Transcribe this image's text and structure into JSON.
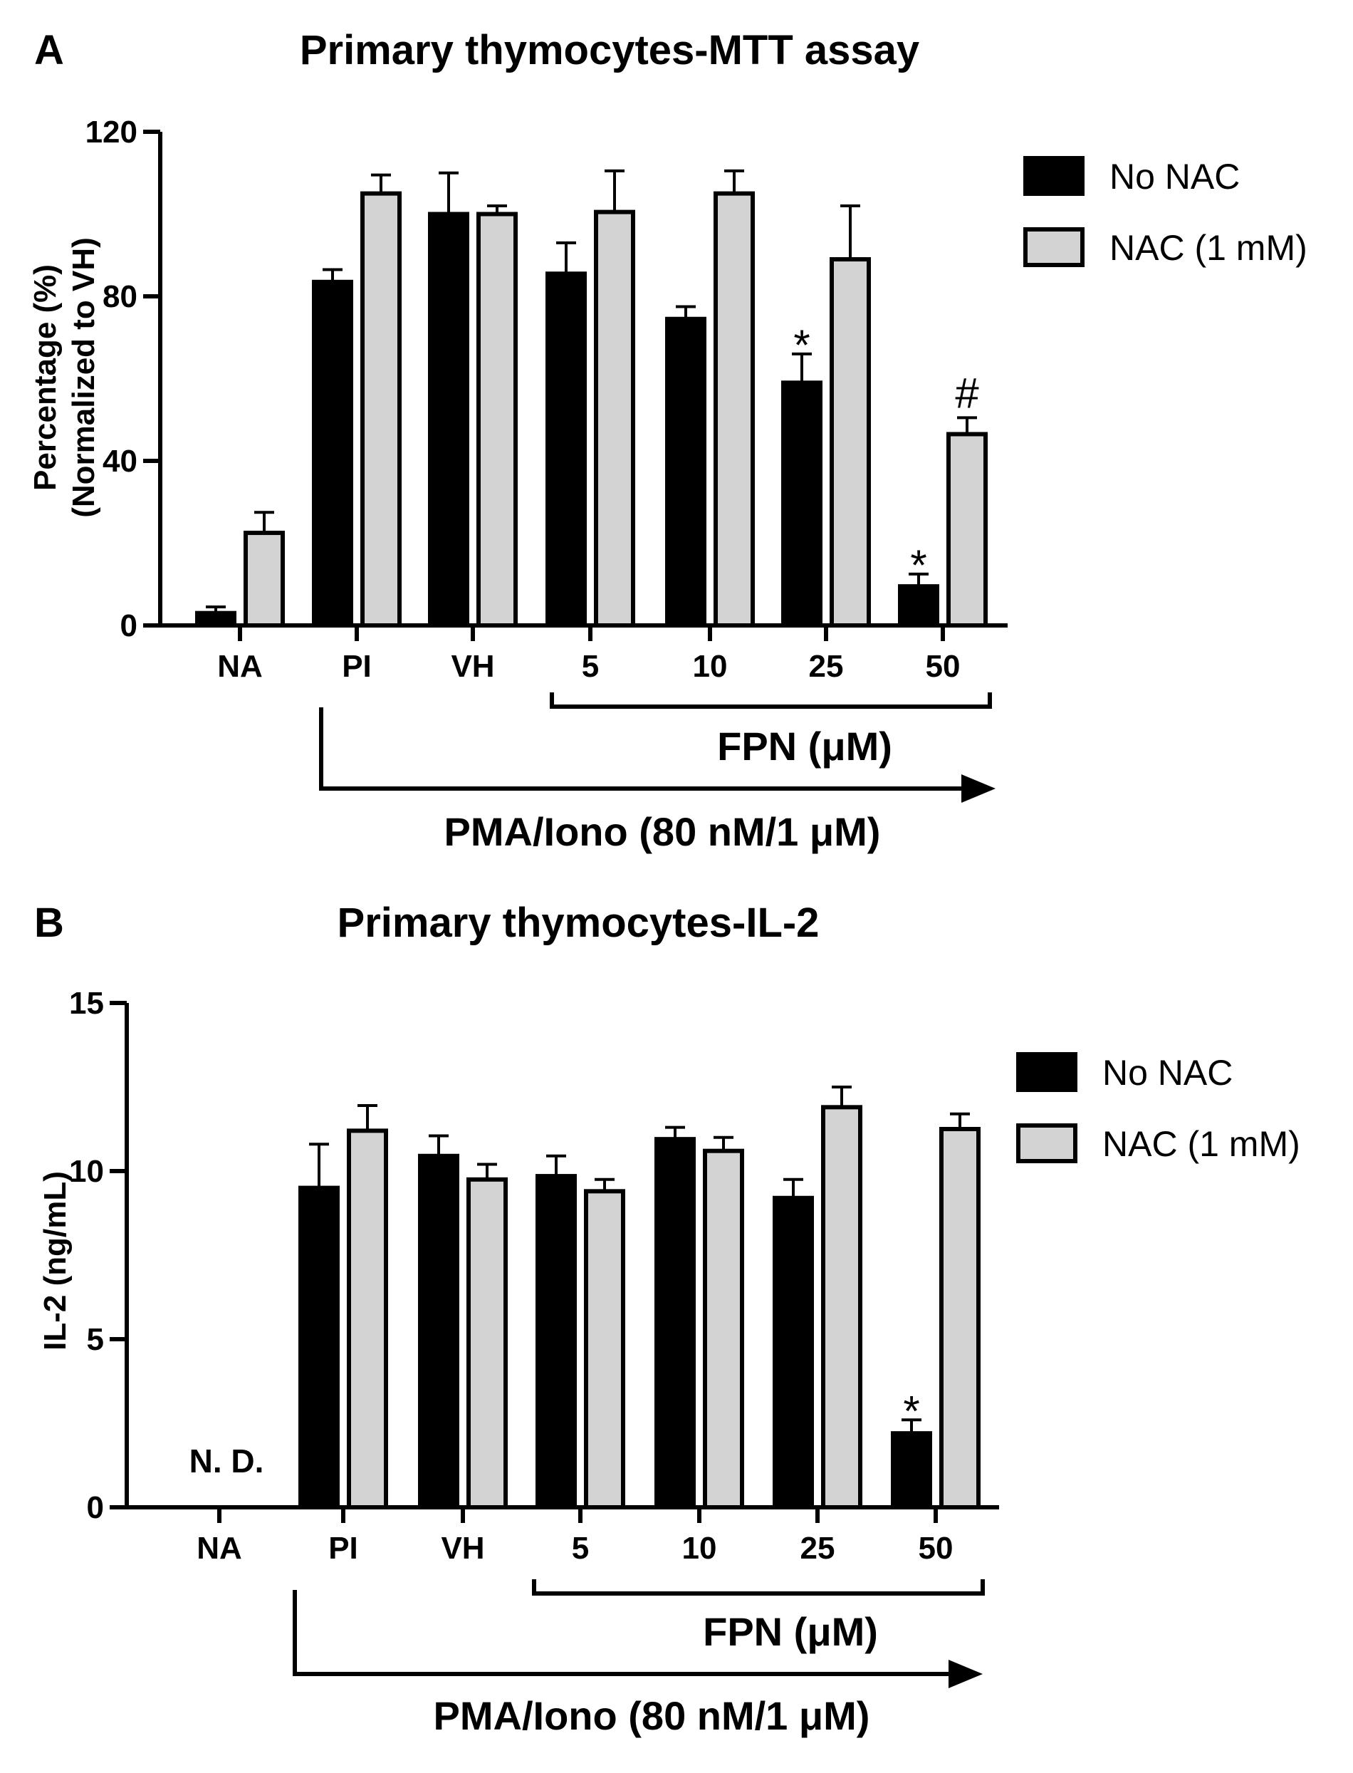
{
  "chart_data": [
    {
      "panel": "A",
      "type": "bar",
      "title": "Primary thymocytes-MTT assay",
      "ylabel": [
        "Percentage (%)",
        "(Normalized to VH)"
      ],
      "ylim": [
        0,
        120
      ],
      "yticks": [
        0,
        40,
        80,
        120
      ],
      "categories": [
        "NA",
        "PI",
        "VH",
        "5",
        "10",
        "25",
        "50"
      ],
      "series": [
        {
          "name": "No NAC",
          "color": "#000000",
          "values": [
            3,
            83.5,
            100,
            85.5,
            74.5,
            59,
            9.5
          ],
          "errors": [
            1.5,
            3,
            10,
            7.5,
            3,
            7,
            3
          ],
          "annotations": [
            "",
            "",
            "",
            "",
            "",
            "*",
            "*"
          ]
        },
        {
          "name": "NAC (1 mM)",
          "color": "#d3d3d3",
          "values": [
            22.5,
            105,
            100,
            100.5,
            105,
            89,
            46.5
          ],
          "errors": [
            5,
            4.5,
            2,
            10,
            5.5,
            13,
            4
          ],
          "annotations": [
            "",
            "",
            "",
            "",
            "",
            "",
            "#"
          ]
        }
      ],
      "brackets": {
        "fpn": "FPN (μM)",
        "pma": "PMA/Iono (80 nM/1 μM)"
      }
    },
    {
      "panel": "B",
      "type": "bar",
      "title": "Primary thymocytes-IL-2",
      "ylabel": [
        "IL-2 (ng/mL)"
      ],
      "ylim": [
        0,
        15
      ],
      "yticks": [
        0,
        5,
        10,
        15
      ],
      "categories": [
        "NA",
        "PI",
        "VH",
        "5",
        "10",
        "25",
        "50"
      ],
      "series": [
        {
          "name": "No NAC",
          "color": "#000000",
          "values": [
            null,
            9.5,
            10.45,
            9.85,
            10.95,
            9.2,
            2.2
          ],
          "errors": [
            0,
            1.3,
            0.6,
            0.6,
            0.35,
            0.55,
            0.4
          ],
          "annotations": [
            "",
            "",
            "",
            "",
            "",
            "",
            "*"
          ]
        },
        {
          "name": "NAC (1 mM)",
          "color": "#d3d3d3",
          "values": [
            null,
            11.2,
            9.75,
            9.4,
            10.6,
            11.9,
            11.25
          ],
          "errors": [
            0,
            0.75,
            0.45,
            0.35,
            0.4,
            0.6,
            0.45
          ],
          "annotations": [
            "",
            "",
            "",
            "",
            "",
            "",
            ""
          ]
        }
      ],
      "nd_label": "N. D.",
      "brackets": {
        "fpn": "FPN (μM)",
        "pma": "PMA/Iono (80 nM/1 μM)"
      }
    }
  ]
}
